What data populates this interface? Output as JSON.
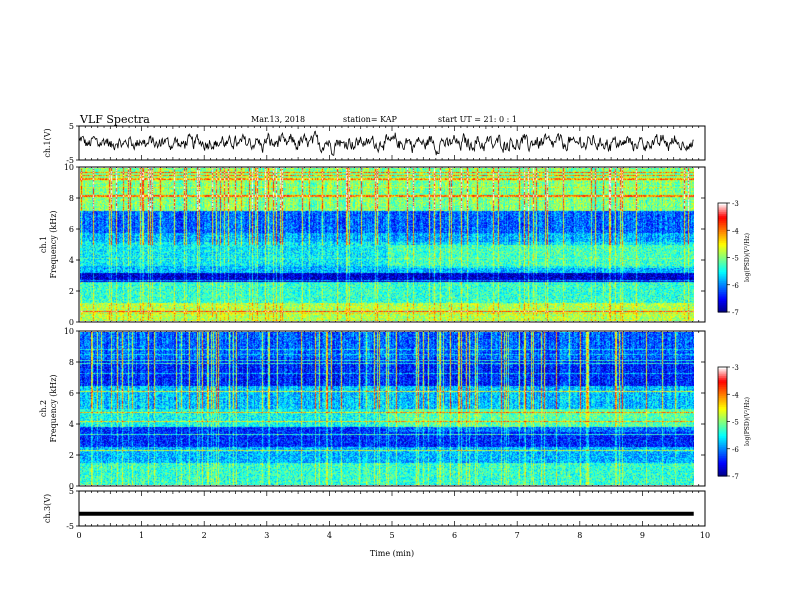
{
  "header": {
    "title": "VLF Spectra",
    "date": "Mar.13, 2018",
    "station": "station= KAP",
    "start": "start  UT =   21: 0  : 1"
  },
  "chart_data": [
    {
      "type": "line",
      "panel": "ch1-waveform",
      "ylabel": "ch.1(V)",
      "ylim": [
        -5,
        5
      ],
      "yticks": [
        "5",
        "-5"
      ],
      "xlim": [
        0,
        10
      ],
      "x_extent": [
        0,
        9.82
      ],
      "color": "#000000",
      "note_series": "Noisy broadband waveform oscillating roughly between -4 and 4 V"
    },
    {
      "type": "heatmap",
      "panel": "ch1-spectrogram",
      "ylabel": "ch.1 Frequency (kHz)",
      "ylim": [
        0,
        10
      ],
      "yticks": [
        "0",
        "2",
        "4",
        "6",
        "8",
        "10"
      ],
      "xlim": [
        0,
        10
      ],
      "x_extent": [
        0,
        9.82
      ],
      "colorbar": {
        "label": "log(PSD)(V²/Hz)",
        "range": [
          -7,
          -3
        ],
        "ticks": [
          "-3",
          "-4",
          "-5",
          "-6",
          "-7"
        ]
      }
    },
    {
      "type": "heatmap",
      "panel": "ch2-spectrogram",
      "ylabel": "ch.2 Frequency (kHz)",
      "ylim": [
        0,
        10
      ],
      "yticks": [
        "0",
        "2",
        "4",
        "6",
        "8",
        "10"
      ],
      "xlim": [
        0,
        10
      ],
      "x_extent": [
        0,
        9.82
      ],
      "colorbar": {
        "label": "log(PSD)(V²/Hz)",
        "range": [
          -7,
          -3
        ],
        "ticks": [
          "-3",
          "-4",
          "-5",
          "-6",
          "-7"
        ]
      }
    },
    {
      "type": "line",
      "panel": "ch3-waveform",
      "ylabel": "ch.3(V)",
      "ylim": [
        -5,
        5
      ],
      "yticks": [
        "5",
        "-5"
      ],
      "xlim": [
        0,
        10
      ],
      "x_extent": [
        0,
        9.82
      ],
      "value": -1.5,
      "color": "#000000"
    }
  ],
  "xaxis": {
    "label": "Time (min)",
    "ticks": [
      "0",
      "1",
      "2",
      "3",
      "4",
      "5",
      "6",
      "7",
      "8",
      "9",
      "10"
    ]
  },
  "colormap": [
    "#000080",
    "#0000ff",
    "#0080ff",
    "#00ffff",
    "#80ff80",
    "#ffff00",
    "#ff8000",
    "#ff0000",
    "#ffffff"
  ]
}
